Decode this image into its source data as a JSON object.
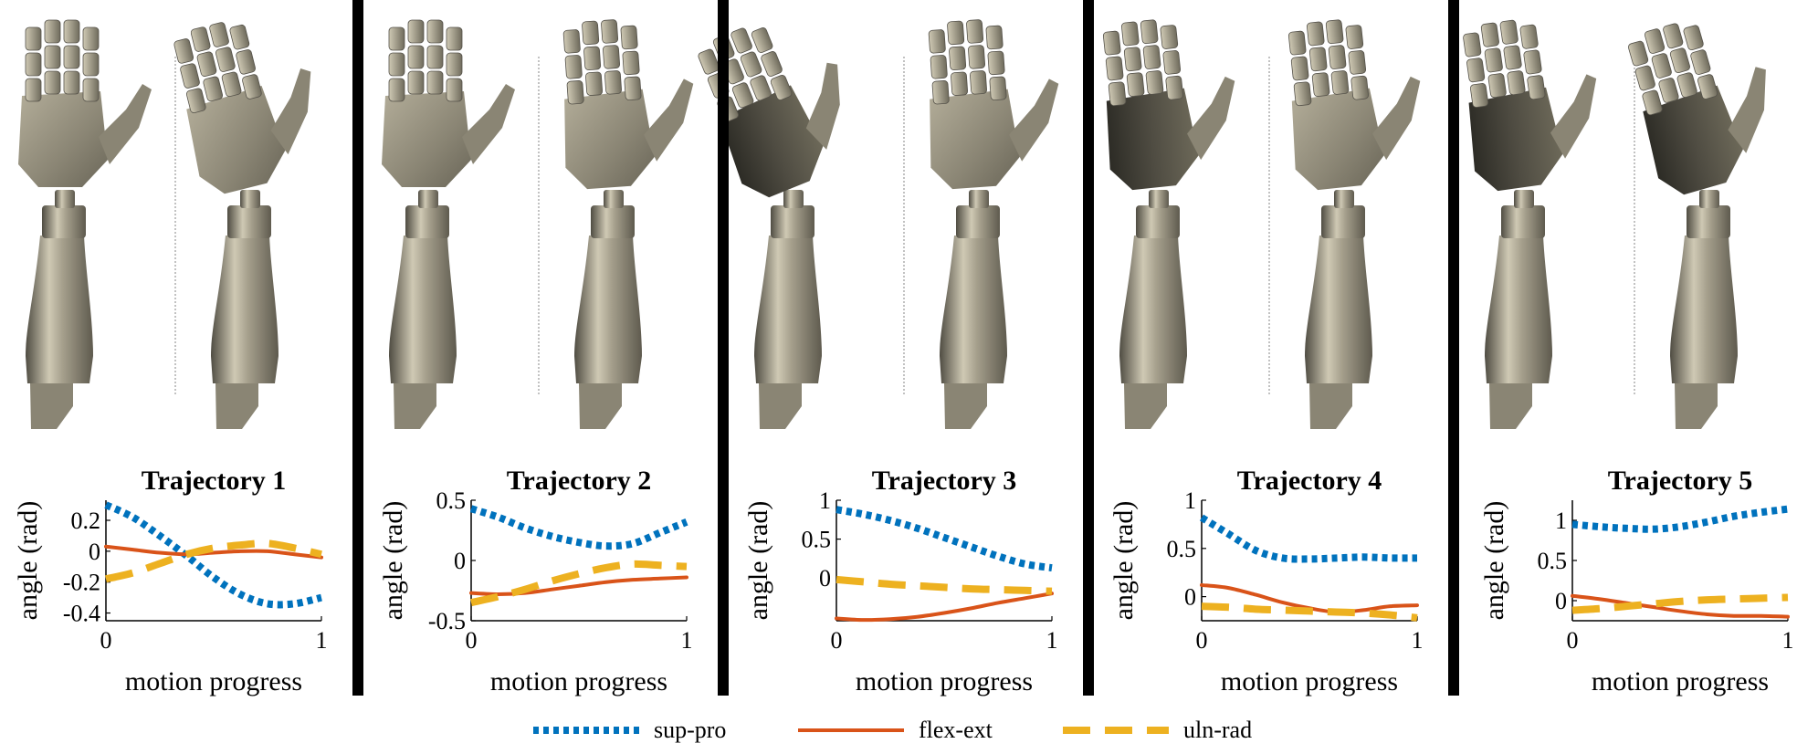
{
  "colors": {
    "sup_pro": "#0072BD",
    "flex_ext": "#D95319",
    "uln_rad": "#EDB120",
    "hand_light": "#a59f8c",
    "hand_mid": "#8a8574",
    "hand_dark": "#4f4c42",
    "hand_shadow": "#2c2b25"
  },
  "legend": [
    {
      "key": "sup_pro",
      "label": "sup-pro",
      "style": "dotted"
    },
    {
      "key": "flex_ext",
      "label": "flex-ext",
      "style": "solid"
    },
    {
      "key": "uln_rad",
      "label": "uln-rad",
      "style": "dashed"
    }
  ],
  "chart_data": [
    {
      "type": "line",
      "title": "Trajectory 1",
      "xlabel": "motion progress",
      "ylabel": "angle (rad)",
      "xlim": [
        0,
        1
      ],
      "ylim": [
        -0.45,
        0.33
      ],
      "xticks": [
        0,
        1
      ],
      "yticks": [
        0.2,
        0,
        -0.2,
        -0.4
      ],
      "ytick_labels": [
        "0.2",
        "0",
        "-0.2",
        "-0.4"
      ],
      "x": [
        0,
        0.125,
        0.25,
        0.375,
        0.5,
        0.625,
        0.75,
        0.875,
        1
      ],
      "series": [
        {
          "key": "sup_pro",
          "name": "sup-pro",
          "values": [
            0.3,
            0.22,
            0.1,
            -0.03,
            -0.17,
            -0.28,
            -0.34,
            -0.34,
            -0.3
          ]
        },
        {
          "key": "flex_ext",
          "name": "flex-ext",
          "values": [
            0.03,
            0.01,
            -0.01,
            -0.02,
            -0.01,
            0.0,
            0.0,
            -0.02,
            -0.04
          ]
        },
        {
          "key": "uln_rad",
          "name": "uln-rad",
          "values": [
            -0.18,
            -0.14,
            -0.08,
            -0.02,
            0.02,
            0.04,
            0.05,
            0.02,
            -0.02
          ]
        }
      ]
    },
    {
      "type": "line",
      "title": "Trajectory 2",
      "xlabel": "motion progress",
      "ylabel": "angle (rad)",
      "xlim": [
        0,
        1
      ],
      "ylim": [
        -0.5,
        0.5
      ],
      "xticks": [
        0,
        1
      ],
      "yticks": [
        0.5,
        0,
        -0.5
      ],
      "ytick_labels": [
        "0.5",
        "0",
        "-0.5"
      ],
      "x": [
        0,
        0.125,
        0.25,
        0.375,
        0.5,
        0.625,
        0.75,
        0.875,
        1
      ],
      "series": [
        {
          "key": "sup_pro",
          "name": "sup-pro",
          "values": [
            0.43,
            0.36,
            0.27,
            0.2,
            0.15,
            0.12,
            0.14,
            0.23,
            0.32
          ]
        },
        {
          "key": "flex_ext",
          "name": "flex-ext",
          "values": [
            -0.27,
            -0.28,
            -0.27,
            -0.24,
            -0.21,
            -0.18,
            -0.16,
            -0.15,
            -0.14
          ]
        },
        {
          "key": "uln_rad",
          "name": "uln-rad",
          "values": [
            -0.35,
            -0.3,
            -0.24,
            -0.17,
            -0.11,
            -0.06,
            -0.03,
            -0.04,
            -0.05
          ]
        }
      ]
    },
    {
      "type": "line",
      "title": "Trajectory 3",
      "xlabel": "motion progress",
      "ylabel": "angle (rad)",
      "xlim": [
        0,
        1
      ],
      "ylim": [
        -0.55,
        1.0
      ],
      "xticks": [
        0,
        1
      ],
      "yticks": [
        1,
        0.5,
        0
      ],
      "ytick_labels": [
        "1",
        "0.5",
        "0"
      ],
      "x": [
        0,
        0.125,
        0.25,
        0.375,
        0.5,
        0.625,
        0.75,
        0.875,
        1
      ],
      "series": [
        {
          "key": "sup_pro",
          "name": "sup-pro",
          "values": [
            0.88,
            0.82,
            0.74,
            0.64,
            0.52,
            0.4,
            0.28,
            0.18,
            0.13
          ]
        },
        {
          "key": "flex_ext",
          "name": "flex-ext",
          "values": [
            -0.52,
            -0.54,
            -0.53,
            -0.5,
            -0.45,
            -0.39,
            -0.32,
            -0.26,
            -0.2
          ]
        },
        {
          "key": "uln_rad",
          "name": "uln-rad",
          "values": [
            -0.02,
            -0.05,
            -0.08,
            -0.1,
            -0.12,
            -0.14,
            -0.15,
            -0.16,
            -0.17
          ]
        }
      ]
    },
    {
      "type": "line",
      "title": "Trajectory 4",
      "xlabel": "motion progress",
      "ylabel": "angle (rad)",
      "xlim": [
        0,
        1
      ],
      "ylim": [
        -0.25,
        1.0
      ],
      "xticks": [
        0,
        1
      ],
      "yticks": [
        1,
        0.5,
        0
      ],
      "ytick_labels": [
        "1",
        "0.5",
        "0"
      ],
      "x": [
        0,
        0.125,
        0.25,
        0.375,
        0.5,
        0.625,
        0.75,
        0.875,
        1
      ],
      "series": [
        {
          "key": "sup_pro",
          "name": "sup-pro",
          "values": [
            0.82,
            0.65,
            0.48,
            0.4,
            0.39,
            0.4,
            0.41,
            0.4,
            0.4
          ]
        },
        {
          "key": "flex_ext",
          "name": "flex-ext",
          "values": [
            0.12,
            0.09,
            0.02,
            -0.06,
            -0.12,
            -0.16,
            -0.14,
            -0.1,
            -0.09
          ]
        },
        {
          "key": "uln_rad",
          "name": "uln-rad",
          "values": [
            -0.1,
            -0.11,
            -0.13,
            -0.14,
            -0.15,
            -0.16,
            -0.17,
            -0.19,
            -0.22
          ]
        }
      ]
    },
    {
      "type": "line",
      "title": "Trajectory 5",
      "xlabel": "motion progress",
      "ylabel": "angle (rad)",
      "xlim": [
        0,
        1
      ],
      "ylim": [
        -0.25,
        1.25
      ],
      "xticks": [
        0,
        1
      ],
      "yticks": [
        1,
        0.5,
        0
      ],
      "ytick_labels": [
        "1",
        "0.5",
        "0"
      ],
      "x": [
        0,
        0.125,
        0.25,
        0.375,
        0.5,
        0.625,
        0.75,
        0.875,
        1
      ],
      "series": [
        {
          "key": "sup_pro",
          "name": "sup-pro",
          "values": [
            0.95,
            0.92,
            0.9,
            0.89,
            0.92,
            0.98,
            1.05,
            1.1,
            1.14
          ]
        },
        {
          "key": "flex_ext",
          "name": "flex-ext",
          "values": [
            0.06,
            0.02,
            -0.03,
            -0.08,
            -0.13,
            -0.17,
            -0.19,
            -0.19,
            -0.2
          ]
        },
        {
          "key": "uln_rad",
          "name": "uln-rad",
          "values": [
            -0.12,
            -0.1,
            -0.07,
            -0.04,
            -0.01,
            0.01,
            0.02,
            0.03,
            0.04
          ]
        }
      ]
    }
  ]
}
